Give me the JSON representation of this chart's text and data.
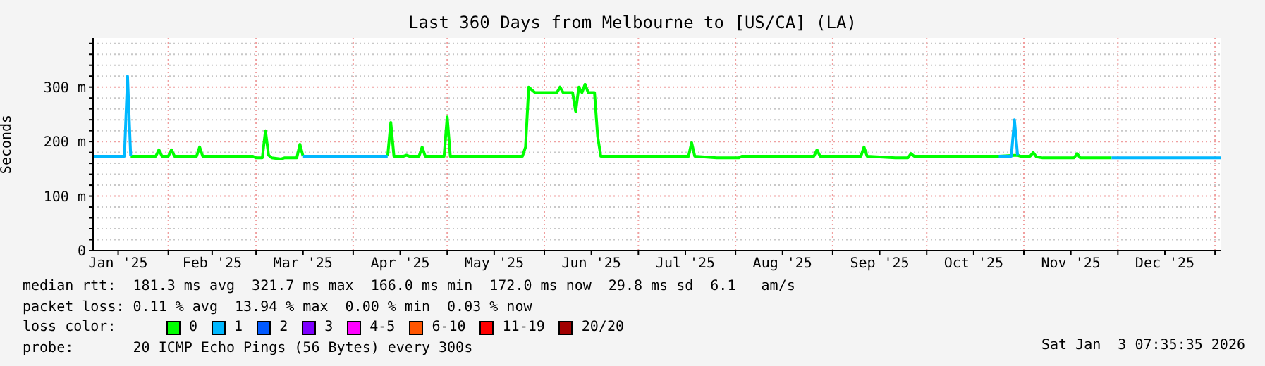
{
  "chart_data": {
    "type": "line",
    "title": "Last 360 Days from Melbourne to [US/CA] (LA)",
    "ylabel": "Seconds",
    "legend_title": "loss color:",
    "legend": "bottom",
    "grid": true,
    "marker": "none",
    "line_style": "solid",
    "xlim": [
      "2025-01-08",
      "2026-01-03"
    ],
    "xticks": [
      {
        "value": "2025-01-16",
        "label": "Jan '25"
      },
      {
        "value": "2025-02-01",
        "label": null
      },
      {
        "value": "2025-02-15",
        "label": "Feb '25"
      },
      {
        "value": "2025-03-01",
        "label": null
      },
      {
        "value": "2025-03-16",
        "label": "Mar '25"
      },
      {
        "value": "2025-04-01",
        "label": null
      },
      {
        "value": "2025-04-16",
        "label": "Apr '25"
      },
      {
        "value": "2025-05-01",
        "label": null
      },
      {
        "value": "2025-05-16",
        "label": "May '25"
      },
      {
        "value": "2025-06-01",
        "label": null
      },
      {
        "value": "2025-06-16",
        "label": "Jun '25"
      },
      {
        "value": "2025-07-01",
        "label": null
      },
      {
        "value": "2025-07-16",
        "label": "Jul '25"
      },
      {
        "value": "2025-08-01",
        "label": null
      },
      {
        "value": "2025-08-16",
        "label": "Aug '25"
      },
      {
        "value": "2025-09-01",
        "label": null
      },
      {
        "value": "2025-09-16",
        "label": "Sep '25"
      },
      {
        "value": "2025-10-01",
        "label": null
      },
      {
        "value": "2025-10-16",
        "label": "Oct '25"
      },
      {
        "value": "2025-11-01",
        "label": null
      },
      {
        "value": "2025-11-16",
        "label": "Nov '25"
      },
      {
        "value": "2025-12-01",
        "label": null
      },
      {
        "value": "2025-12-16",
        "label": "Dec '25"
      },
      {
        "value": "2026-01-01",
        "label": null
      }
    ],
    "ylim": [
      0,
      390
    ],
    "yticks": [
      0,
      {
        "value": 20,
        "label": null
      },
      {
        "value": 40,
        "label": null
      },
      {
        "value": 60,
        "label": null
      },
      {
        "value": 80,
        "label": null
      },
      {
        "value": 100,
        "label": "100 m"
      },
      {
        "value": 120,
        "label": null
      },
      {
        "value": 140,
        "label": null
      },
      {
        "value": 160,
        "label": null
      },
      {
        "value": 180,
        "label": null
      },
      {
        "value": 200,
        "label": "200 m"
      },
      {
        "value": 220,
        "label": null
      },
      {
        "value": 240,
        "label": null
      },
      {
        "value": 260,
        "label": null
      },
      {
        "value": 280,
        "label": null
      },
      {
        "value": 300,
        "label": "300 m"
      },
      {
        "value": 320,
        "label": null
      },
      {
        "value": 340,
        "label": null
      },
      {
        "value": 360,
        "label": null
      },
      {
        "value": 380,
        "label": null
      }
    ],
    "series": [
      {
        "name": "0",
        "color": "#00ff00",
        "x": [
          "2025-01-20",
          "2025-01-28",
          "2025-01-29",
          "2025-01-30",
          "2025-02-01",
          "2025-02-02",
          "2025-02-03",
          "2025-02-10",
          "2025-02-11",
          "2025-02-12",
          "2025-02-28",
          "2025-03-01",
          "2025-03-03",
          "2025-03-04",
          "2025-03-05",
          "2025-03-06",
          "2025-03-09",
          "2025-03-10",
          "2025-03-14",
          "2025-03-15",
          "2025-03-16",
          "2025-03-20",
          "2025-04-12",
          "2025-04-13",
          "2025-04-14",
          "2025-04-17",
          "2025-04-18",
          "2025-04-19",
          "2025-04-22",
          "2025-04-23",
          "2025-04-24",
          "2025-04-30",
          "2025-05-01",
          "2025-05-02",
          "2025-05-25",
          "2025-05-26",
          "2025-05-27",
          "2025-05-29",
          "2025-06-05",
          "2025-06-06",
          "2025-06-07",
          "2025-06-10",
          "2025-06-11",
          "2025-06-12",
          "2025-06-13",
          "2025-06-14",
          "2025-06-15",
          "2025-06-17",
          "2025-06-18",
          "2025-06-19",
          "2025-07-17",
          "2025-07-18",
          "2025-07-19",
          "2025-07-26",
          "2025-08-02",
          "2025-08-03",
          "2025-08-26",
          "2025-08-27",
          "2025-08-28",
          "2025-09-10",
          "2025-09-11",
          "2025-09-12",
          "2025-09-21",
          "2025-09-25",
          "2025-09-26",
          "2025-09-27",
          "2025-10-24",
          "2025-10-30",
          "2025-10-31",
          "2025-11-03",
          "2025-11-04",
          "2025-11-05",
          "2025-11-07",
          "2025-11-17",
          "2025-11-18",
          "2025-11-19",
          "2025-11-29"
        ],
        "values": [
          173,
          173,
          185,
          173,
          173,
          185,
          173,
          173,
          190,
          173,
          173,
          170,
          170,
          220,
          175,
          170,
          168,
          170,
          170,
          195,
          173,
          null,
          173,
          235,
          173,
          173,
          175,
          173,
          173,
          190,
          173,
          173,
          245,
          173,
          173,
          190,
          300,
          290,
          290,
          300,
          290,
          290,
          255,
          300,
          290,
          305,
          290,
          290,
          210,
          173,
          173,
          198,
          173,
          170,
          170,
          173,
          173,
          185,
          173,
          173,
          190,
          173,
          170,
          170,
          178,
          173,
          173,
          175,
          173,
          173,
          180,
          172,
          170,
          170,
          178,
          170,
          170
        ]
      },
      {
        "name": "1",
        "color": "#00b8ff",
        "x": [
          "2025-01-08",
          "2025-01-18",
          "2025-01-19",
          "2025-01-20",
          "2025-02-15",
          "2025-03-16",
          "2025-04-12",
          "2025-06-01",
          "2025-10-24",
          "2025-10-28",
          "2025-10-29",
          "2025-10-30",
          "2025-11-10",
          "2025-11-29",
          "2026-01-03"
        ],
        "values": [
          173,
          173,
          320,
          173,
          null,
          173,
          173,
          null,
          173,
          173,
          240,
          175,
          null,
          170,
          170
        ]
      },
      {
        "name": "2",
        "color": "#0059ff"
      },
      {
        "name": "3",
        "color": "#7e00ff"
      },
      {
        "name": "4-5",
        "color": "#ff00ff"
      },
      {
        "name": "6-10",
        "color": "#ff5500"
      },
      {
        "name": "11-19",
        "color": "#ff0000"
      },
      {
        "name": "20/20",
        "color": "#a10000"
      }
    ],
    "annotations": [
      "median rtt:  181.3 ms avg  321.7 ms max  166.0 ms min  172.0 ms now  29.8 ms sd  6.1   am/s",
      "packet loss: 0.11 % avg  13.94 % max  0.00 % min  0.03 % now",
      "probe:       20 ICMP Echo Pings (56 Bytes) every 300s",
      "Sat Jan  3 07:35:35 2026"
    ]
  }
}
